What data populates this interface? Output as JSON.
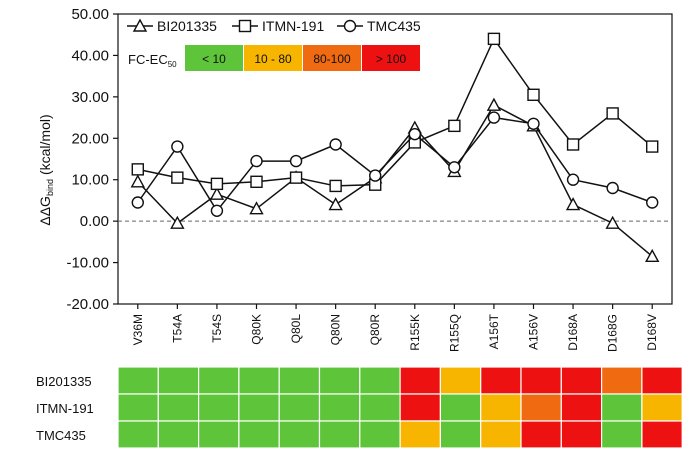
{
  "chart_data": [
    {
      "type": "line",
      "ylabel": "ΔΔG",
      "ylabel_sub": "bind",
      "ylabel_unit": "(kcal/mol)",
      "ylim": [
        -20,
        50
      ],
      "yticks": [
        "50.00",
        "40.00",
        "30.00",
        "20.00",
        "10.00",
        "0.00",
        "-10.00",
        "-20.00"
      ],
      "ytick_values": [
        50,
        40,
        30,
        20,
        10,
        0,
        -10,
        -20
      ],
      "zero_line": "dashed",
      "grid": false,
      "legend_position": "top-left",
      "categories": [
        "V36M",
        "T54A",
        "T54S",
        "Q80K",
        "Q80L",
        "Q80N",
        "Q80R",
        "R155K",
        "R155Q",
        "A156T",
        "A156V",
        "D168A",
        "D168G",
        "D168V"
      ],
      "series": [
        {
          "name": "BI201335",
          "marker": "triangle",
          "values": [
            9.5,
            -0.5,
            6.5,
            3.0,
            10.5,
            4.0,
            10.5,
            22.5,
            12.0,
            28.0,
            23.0,
            4.0,
            -0.5,
            -8.5
          ]
        },
        {
          "name": "ITMN-191",
          "marker": "square",
          "values": [
            12.5,
            10.5,
            9.0,
            9.5,
            10.5,
            8.5,
            8.8,
            19.0,
            23.0,
            44.0,
            30.5,
            18.5,
            26.0,
            18.0
          ]
        },
        {
          "name": "TMC435",
          "marker": "circle",
          "values": [
            4.5,
            18.0,
            2.5,
            14.5,
            14.5,
            18.5,
            11.0,
            21.0,
            13.0,
            25.0,
            23.5,
            10.0,
            8.0,
            4.5
          ]
        }
      ],
      "color_key": {
        "label": "FC-EC",
        "label_sub": "50",
        "bins": [
          {
            "label": "< 10",
            "color": "#5ec43a"
          },
          {
            "label": "10 - 80",
            "color": "#f7b500"
          },
          {
            "label": "80-100",
            "color": "#ef6a10"
          },
          {
            "label": "> 100",
            "color": "#ee1111"
          }
        ]
      }
    },
    {
      "type": "heatmap",
      "rows": [
        "BI201335",
        "ITMN-191",
        "TMC435"
      ],
      "columns": [
        "V36M",
        "T54A",
        "T54S",
        "Q80K",
        "Q80L",
        "Q80N",
        "Q80R",
        "R155K",
        "R155Q",
        "A156T",
        "A156V",
        "D168A",
        "D168G",
        "D168V"
      ],
      "cells": [
        [
          "<10",
          "<10",
          "<10",
          "<10",
          "<10",
          "<10",
          "<10",
          ">100",
          "10-80",
          ">100",
          ">100",
          ">100",
          "80-100",
          ">100"
        ],
        [
          "<10",
          "<10",
          "<10",
          "<10",
          "<10",
          "<10",
          "<10",
          ">100",
          "<10",
          "10-80",
          "80-100",
          ">100",
          "<10",
          "10-80"
        ],
        [
          "<10",
          "<10",
          "<10",
          "<10",
          "<10",
          "<10",
          "<10",
          "10-80",
          "<10",
          "10-80",
          ">100",
          ">100",
          "<10",
          ">100"
        ]
      ],
      "bin_colors": {
        "<10": "#5ec43a",
        "10-80": "#f7b500",
        "80-100": "#ef6a10",
        ">100": "#ee1111"
      }
    }
  ]
}
